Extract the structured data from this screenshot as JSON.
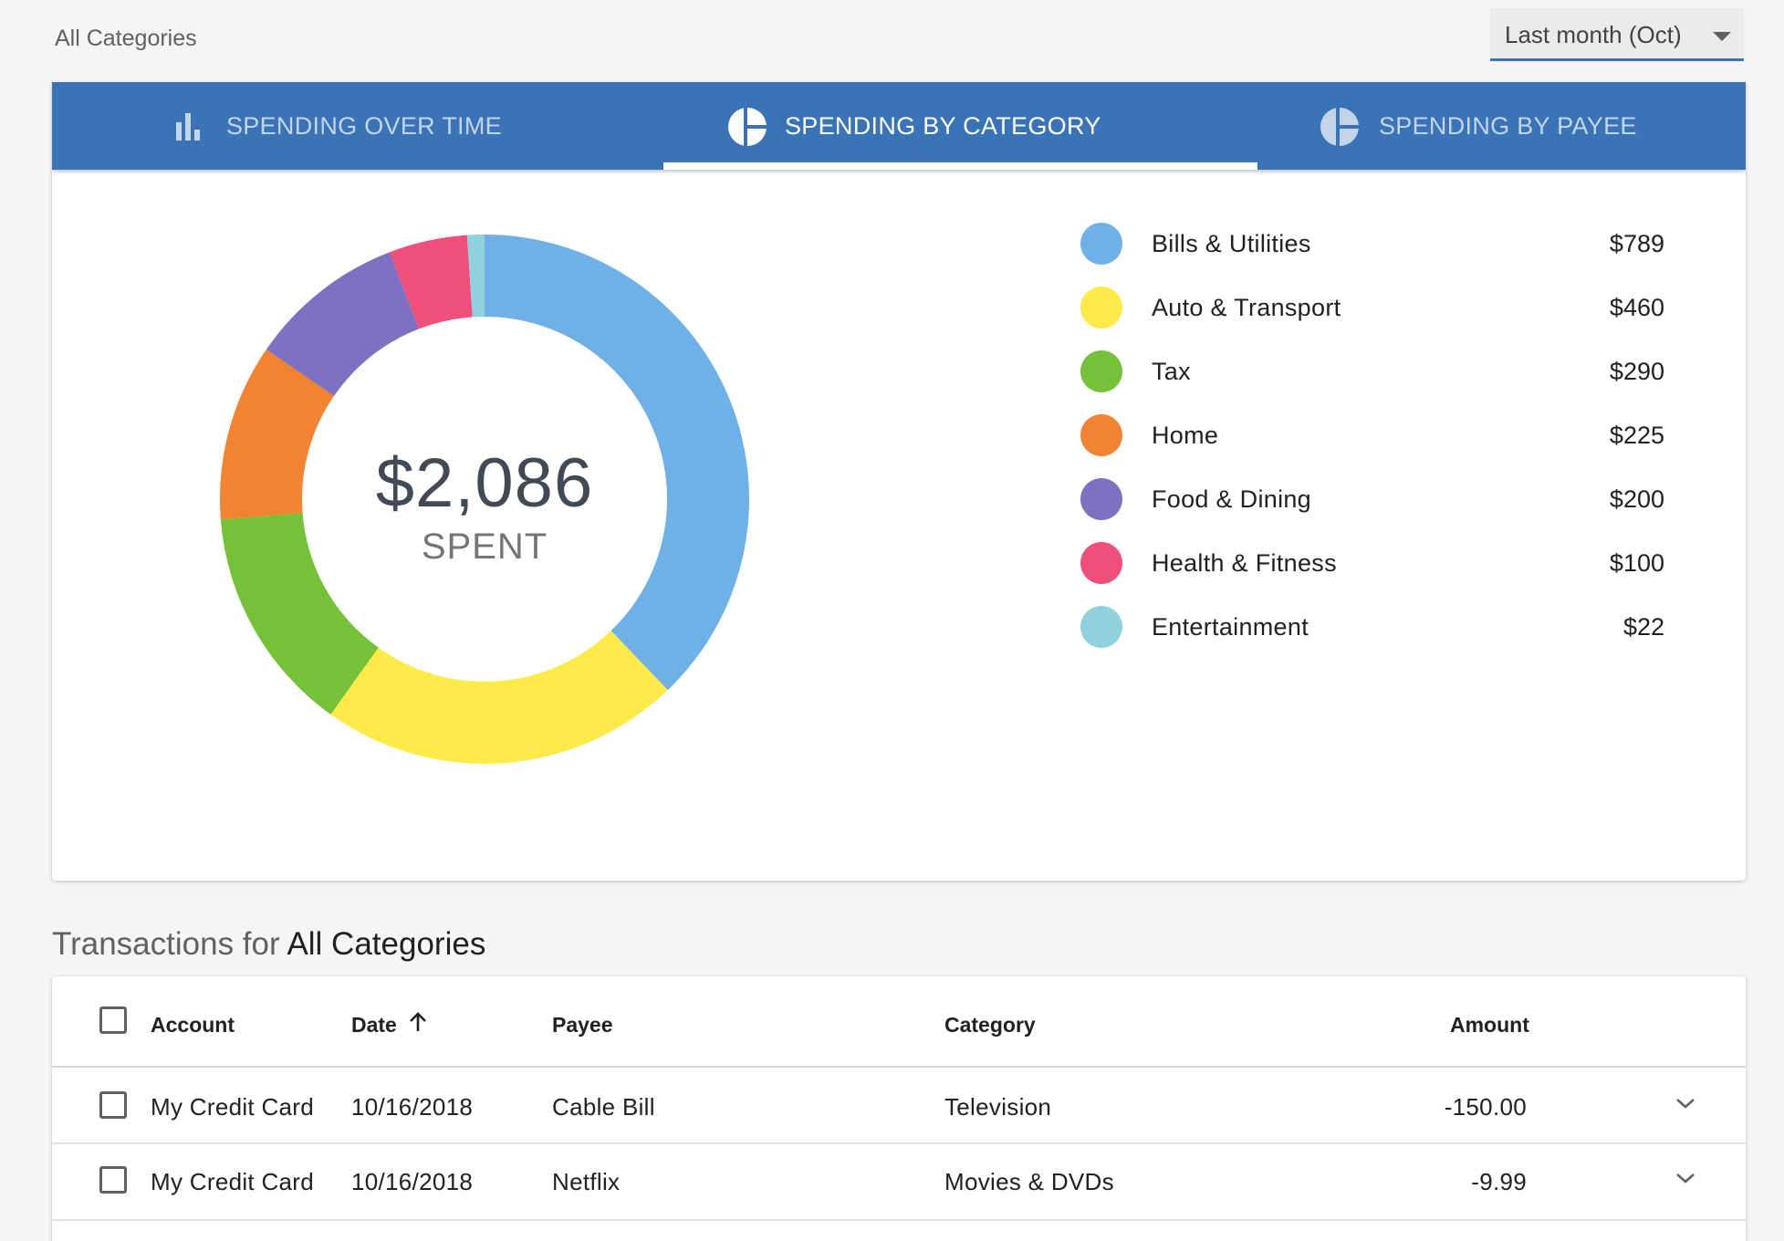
{
  "breadcrumb": "All Categories",
  "period_select": {
    "value": "Last month (Oct)"
  },
  "tabs": [
    {
      "label": "SPENDING OVER TIME",
      "icon": "bar-chart-icon",
      "active": false
    },
    {
      "label": "SPENDING BY CATEGORY",
      "icon": "pie-chart-icon",
      "active": true
    },
    {
      "label": "SPENDING BY PAYEE",
      "icon": "pie-chart-icon",
      "active": false
    }
  ],
  "summary": {
    "amount": "$2,086",
    "label": "SPENT"
  },
  "categories": [
    {
      "name": "Bills & Utilities",
      "amount": "$789",
      "color": "#6fb1e6"
    },
    {
      "name": "Auto & Transport",
      "amount": "$460",
      "color": "#feeb4a"
    },
    {
      "name": "Tax",
      "amount": "$290",
      "color": "#75c13a"
    },
    {
      "name": "Home",
      "amount": "$225",
      "color": "#f18433"
    },
    {
      "name": "Food & Dining",
      "amount": "$200",
      "color": "#7d71c1"
    },
    {
      "name": "Health & Fitness",
      "amount": "$100",
      "color": "#ee4f7c"
    },
    {
      "name": "Entertainment",
      "amount": "$22",
      "color": "#8fd2de"
    }
  ],
  "chart_data": {
    "type": "pie",
    "categories": [
      "Bills & Utilities",
      "Auto & Transport",
      "Tax",
      "Home",
      "Food & Dining",
      "Health & Fitness",
      "Entertainment"
    ],
    "values": [
      789,
      460,
      290,
      225,
      200,
      100,
      22
    ],
    "colors": [
      "#6fb1e6",
      "#feeb4a",
      "#75c13a",
      "#f18433",
      "#7d71c1",
      "#ee4f7c",
      "#8fd2de"
    ],
    "donut": true,
    "title": "",
    "legend": "right"
  },
  "transactions": {
    "heading_prefix": "Transactions for",
    "heading_bold": "All Categories",
    "columns": {
      "account": "Account",
      "date": "Date",
      "payee": "Payee",
      "category": "Category",
      "amount": "Amount"
    },
    "sort": {
      "column": "date",
      "direction": "ascending"
    },
    "rows": [
      {
        "account": "My Credit Card",
        "date": "10/16/2018",
        "payee": "Cable Bill",
        "category": "Television",
        "amount": "-150.00"
      },
      {
        "account": "My Credit Card",
        "date": "10/16/2018",
        "payee": "Netflix",
        "category": "Movies & DVDs",
        "amount": "-9.99"
      }
    ]
  }
}
